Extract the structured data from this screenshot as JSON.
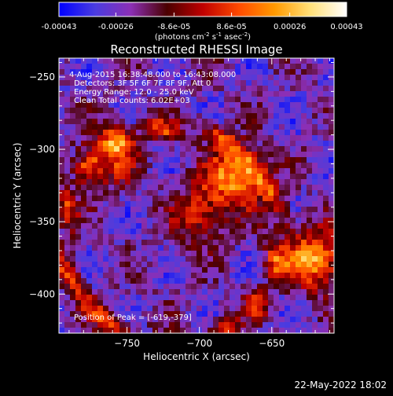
{
  "colorbar": {
    "tick_labels": [
      "-0.00043",
      "-0.00026",
      "-8.6e-05",
      "8.6e-05",
      "0.00026",
      "0.00043"
    ],
    "tick_values": [
      -0.00043,
      -0.00026,
      -8.6e-05,
      8.6e-05,
      0.00026,
      0.00043
    ],
    "range": [
      -0.00043,
      0.00043
    ],
    "units_text": "(photons cm",
    "units_sup1": "-2",
    "units_mid": " s",
    "units_sup2": "-1",
    "units_tail": " asec",
    "units_sup3": "-2",
    "units_close": ")",
    "colormap": "rhessi-std-gamma-ii",
    "stops": [
      "#0000ff",
      "#4a3ce0",
      "#8c2fb5",
      "#4a0000",
      "#c00000",
      "#ff4a00",
      "#ff9a00",
      "#ffe07a",
      "#ffffff"
    ]
  },
  "chart_data": {
    "type": "heatmap",
    "title": "Reconstructed RHESSI Image",
    "xlabel": "Heliocentric X (arcsec)",
    "ylabel": "Heliocentric Y (arcsec)",
    "xlim": [
      -797,
      -607
    ],
    "ylim": [
      -427,
      -237
    ],
    "xticks": [
      -750,
      -700,
      -650
    ],
    "xtick_labels": [
      "−750",
      "−700",
      "−650"
    ],
    "yticks": [
      -250,
      -300,
      -350,
      -400
    ],
    "ytick_labels": [
      "−250",
      "−300",
      "−350",
      "−400"
    ],
    "annotations": [
      "4-Aug-2015 16:38:48.000 to 16:43:08.000",
      "Detectors: 3F 5F 6F 7F 8F 9F, Att 0",
      "Energy Range: 12.0 - 25.0 keV",
      "Clean     Total counts: 6.02E+03"
    ],
    "peak_label": "Position of Peak = [-619,-379]",
    "peak": [
      -619,
      -379
    ],
    "bright_sources": [
      {
        "x": -676,
        "y": -320,
        "level": 0.9
      },
      {
        "x": -621,
        "y": -376,
        "level": 1.0
      },
      {
        "x": -700,
        "y": -345,
        "level": 0.55
      },
      {
        "x": -762,
        "y": -305,
        "level": 0.6
      }
    ],
    "grid": false
  },
  "footer": {
    "date": "22-May-2022 18:02"
  }
}
